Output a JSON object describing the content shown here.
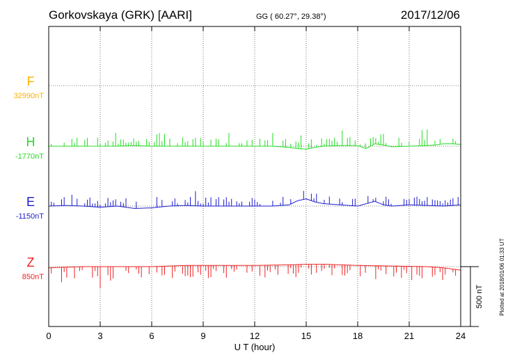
{
  "header": {
    "station": "Gorkovskaya (GRK)  [AARI]",
    "coords": "GG ( 60.27°,  29.38°)",
    "date": "2017/12/06"
  },
  "footer": {
    "plotted": "Plotted at 2018/01/06 01:33 UT"
  },
  "chart_data": {
    "type": "line",
    "title": "Gorkovskaya (GRK)  [AARI]",
    "xlabel": "U T (hour)",
    "ylabel": "",
    "xlim": [
      0,
      24
    ],
    "x_ticks": [
      "0",
      "3",
      "6",
      "9",
      "12",
      "15",
      "18",
      "21",
      "24"
    ],
    "grid": true,
    "scale_bar": {
      "label": "500 nT",
      "value_nT": 500
    },
    "colors": {
      "F": "#ffb000",
      "H": "#22dd22",
      "E": "#1a1acc",
      "Z": "#ee2222"
    },
    "series": [
      {
        "name": "F",
        "baseline_label": "32990nT",
        "baseline_nT": 32990,
        "values": []
      },
      {
        "name": "H",
        "baseline_label": "-1770nT",
        "baseline_nT": -1770,
        "x": [
          0,
          1,
          2,
          3,
          4,
          5,
          6,
          7,
          8,
          9,
          10,
          11,
          12,
          13,
          14,
          14.5,
          15,
          15.5,
          16,
          17,
          18,
          18.5,
          19,
          19.5,
          20,
          21,
          22,
          22.5,
          23,
          23.5,
          24
        ],
        "values": [
          0,
          0,
          0,
          0,
          0,
          5,
          0,
          0,
          0,
          0,
          0,
          0,
          0,
          0,
          -10,
          -20,
          -25,
          -10,
          0,
          5,
          5,
          -20,
          20,
          10,
          -5,
          0,
          5,
          10,
          20,
          20,
          15
        ]
      },
      {
        "name": "E",
        "baseline_label": "-1150nT",
        "baseline_nT": -1150,
        "x": [
          0,
          1,
          2,
          3,
          4,
          5,
          6,
          7,
          8,
          9,
          10,
          11,
          12,
          13,
          14,
          14.5,
          15,
          15.5,
          16,
          17,
          18,
          18.5,
          19,
          19.5,
          20,
          21,
          22,
          23,
          23.5,
          24
        ],
        "values": [
          0,
          5,
          0,
          -10,
          0,
          -20,
          -15,
          0,
          5,
          0,
          0,
          0,
          0,
          0,
          10,
          45,
          60,
          35,
          20,
          10,
          0,
          20,
          40,
          10,
          0,
          10,
          5,
          0,
          5,
          10
        ]
      },
      {
        "name": "Z",
        "baseline_label": "850nT",
        "baseline_nT": 850,
        "x": [
          0,
          2,
          4,
          6,
          8,
          10,
          12,
          14,
          15,
          16,
          17,
          18,
          20,
          22,
          23,
          24
        ],
        "values": [
          -10,
          0,
          0,
          0,
          10,
          10,
          10,
          15,
          20,
          20,
          15,
          10,
          5,
          0,
          -10,
          -30
        ]
      }
    ]
  }
}
